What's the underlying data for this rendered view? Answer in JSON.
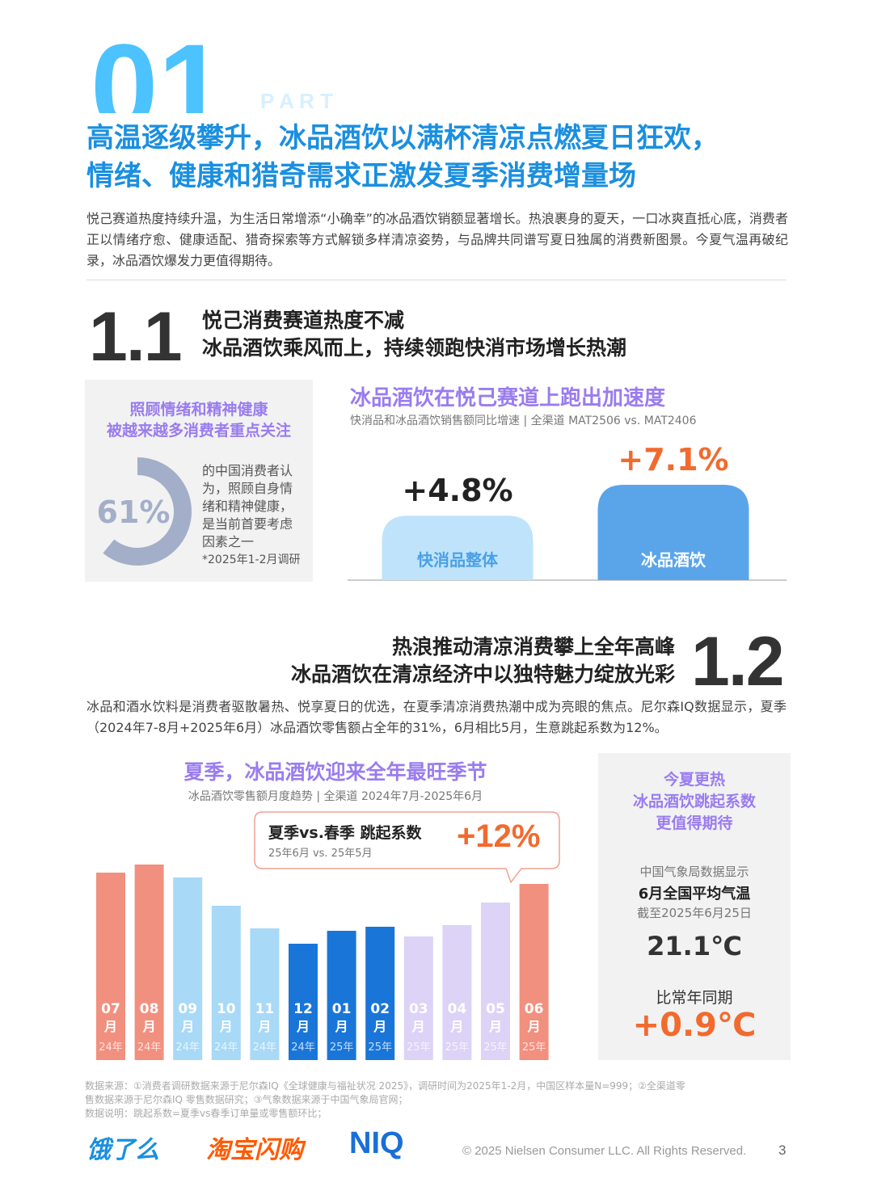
{
  "header": {
    "part_number": "01",
    "part_label": "P A R T",
    "title_lines": [
      "高温逐级攀升，冰品酒饮以满杯清凉点燃夏日狂欢，",
      "情绪、健康和猎奇需求正激发夏季消费增量场"
    ],
    "intro": "悦己赛道热度持续升温，为生活日常增添“小确幸”的冰品酒饮销额显著增长。热浪裹身的夏天，一口冰爽直抵心底，消费者正以情绪疗愈、健康适配、猎奇探索等方式解锁多样清凉姿势，与品牌共同谱写夏日独属的消费新图景。今夏气温再破纪录，冰品酒饮爆发力更值得期待。"
  },
  "section_1": {
    "number": "1.1",
    "title_lines": [
      "悦己消费赛道热度不减",
      "冰品酒饮乘风而上，持续领跑快消市场增长热潮"
    ]
  },
  "insight_card": {
    "title_lines": [
      "照顾情绪和精神健康",
      "被越来越多消费者重点关注"
    ],
    "donut": {
      "value": 61,
      "label": "61%",
      "color": "#a3afc9"
    },
    "text_lines": [
      "的中国消费者认",
      "为，照顾自身情",
      "绪和精神健康，",
      "是当前首要考虑",
      "因素之一"
    ],
    "note": "*2025年1-2月调研"
  },
  "chart_data": [
    {
      "type": "bar",
      "title": "冰品酒饮在悦己赛道上跑出加速度",
      "subtitle": "快消品和冰品酒饮销售额同比增速 | 全渠道 MAT2506 vs. MAT2406",
      "categories": [
        "快消品整体",
        "冰品酒饮"
      ],
      "values": [
        4.8,
        7.1
      ],
      "value_labels": [
        "+4.8%",
        "+7.1%"
      ],
      "colors": [
        "#bfe3fa",
        "#5aa5ea"
      ],
      "label_colors": [
        "#222222",
        "#f26a2e"
      ]
    },
    {
      "type": "bar",
      "title": "夏季，冰品酒饮迎来全年最旺季节",
      "subtitle": "冰品酒饮零售额月度趋势 | 全渠道 2024年7月-2025年6月",
      "categories": [
        "07",
        "08",
        "09",
        "10",
        "11",
        "12",
        "01",
        "02",
        "03",
        "04",
        "05",
        "06"
      ],
      "month_unit": "月",
      "year_labels": [
        "24年",
        "24年",
        "24年",
        "24年",
        "24年",
        "24年",
        "25年",
        "25年",
        "25年",
        "25年",
        "25年",
        "25年"
      ],
      "values": [
        232,
        242,
        226,
        191,
        163,
        144,
        160,
        165,
        153,
        167,
        195,
        218
      ],
      "colors": [
        "#f2907f",
        "#f2907f",
        "#a8d9f7",
        "#a8d9f7",
        "#a8d9f7",
        "#1976d8",
        "#1976d8",
        "#1976d8",
        "#dcd3f7",
        "#dcd3f7",
        "#dcd3f7",
        "#f2907f"
      ],
      "callout": {
        "title": "夏季vs.春季 跳起系数",
        "subtitle": "25年6月 vs. 25年5月",
        "value": "+12%"
      }
    }
  ],
  "section_2": {
    "number": "1.2",
    "title_lines": [
      "热浪推动清凉消费攀上全年高峰",
      "冰品酒饮在清凉经济中以独特魅力绽放光彩"
    ],
    "body": "冰品和酒水饮料是消费者驱散暑热、悦享夏日的优选，在夏季清凉消费热潮中成为亮眼的焦点。尼尔森IQ数据显示，夏季（2024年7-8月+2025年6月）冰品酒饮零售额占全年的31%，6月相比5月，生意跳起系数为12%。"
  },
  "side_card": {
    "title_lines": [
      "今夏更热",
      "冰品酒饮跳起系数",
      "更值得期待"
    ],
    "source_line": "中国气象局数据显示",
    "metric_line": "6月全国平均气温",
    "date_line": "截至2025年6月25日",
    "temperature": "21.1℃",
    "compare_line": "比常年同期",
    "delta": "+0.9℃"
  },
  "footer": {
    "sources": [
      "数据来源：①消费者调研数据来源于尼尔森IQ《全球健康与福祉状况 2025》，调研时间为2025年1-2月，中国区样本量N=999；②全渠道零",
      "售数据来源于尼尔森IQ 零售数据研究；③气象数据来源于中国气象局官网；",
      "数据说明：跳起系数=夏季vs春季订单量或零售额环比；"
    ],
    "logos": [
      "饿了么",
      "淘宝闪购",
      "NIQ"
    ],
    "copyright": "© 2025 Nielsen Consumer LLC. All Rights Reserved.",
    "page": "3"
  }
}
